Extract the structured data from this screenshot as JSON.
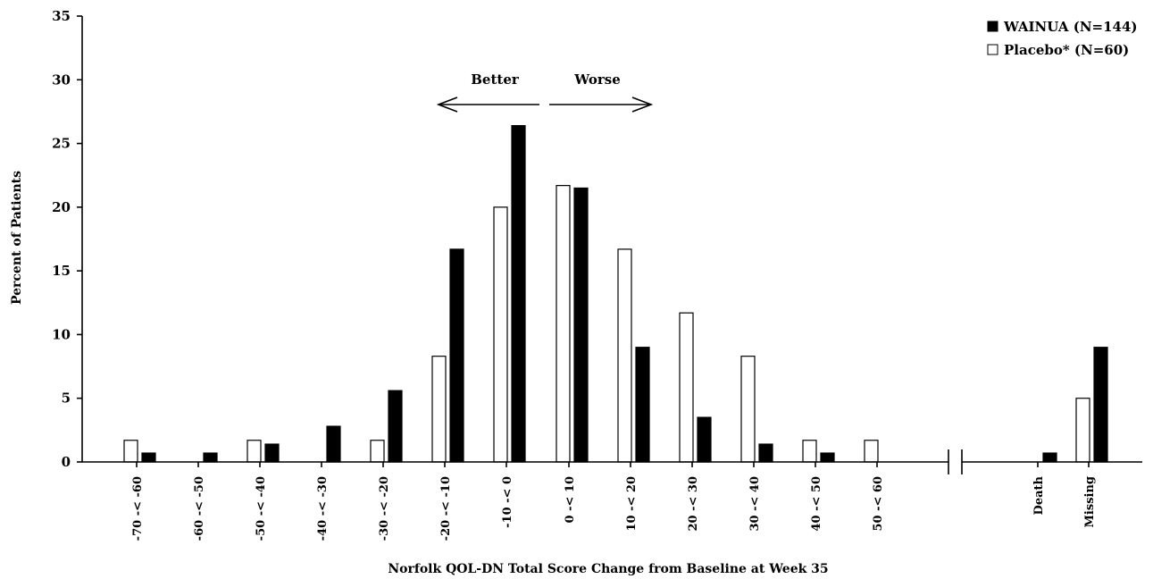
{
  "chart_data": {
    "type": "bar",
    "title": "",
    "xlabel": "Norfolk QOL-DN Total Score Change from Baseline at Week 35",
    "ylabel": "Percent of Patients",
    "ylim": [
      0,
      35
    ],
    "yticks": [
      0,
      5,
      10,
      15,
      20,
      25,
      30,
      35
    ],
    "grid": false,
    "legend_position": "top-right",
    "categories": [
      "-70 -< -60",
      "-60 -< -50",
      "-50 -< -40",
      "-40 -< -30",
      "-30 -< -20",
      "-20 -< -10",
      "-10 -< 0",
      "0 -< 10",
      "10 -< 20",
      "20 -< 30",
      "30 -< 40",
      "40 -< 50",
      "50 -< 60",
      "Death",
      "Missing"
    ],
    "axis_break_after_category": "50 -< 60",
    "series": [
      {
        "name": "Placebo* (N=60)",
        "fill": "#ffffff",
        "values": [
          1.7,
          0,
          1.7,
          0,
          1.7,
          8.3,
          20.0,
          21.7,
          16.7,
          11.7,
          8.3,
          1.7,
          1.7,
          0,
          5.0
        ]
      },
      {
        "name": "WAINUA (N=144)",
        "fill": "#000000",
        "values": [
          0.7,
          0.7,
          1.4,
          2.8,
          5.6,
          16.7,
          26.4,
          21.5,
          9.0,
          3.5,
          1.4,
          0.7,
          0,
          0.7,
          9.0
        ]
      }
    ],
    "legend_order": [
      "WAINUA (N=144)",
      "Placebo* (N=60)"
    ],
    "annotations": {
      "better": "Better",
      "worse": "Worse"
    }
  }
}
